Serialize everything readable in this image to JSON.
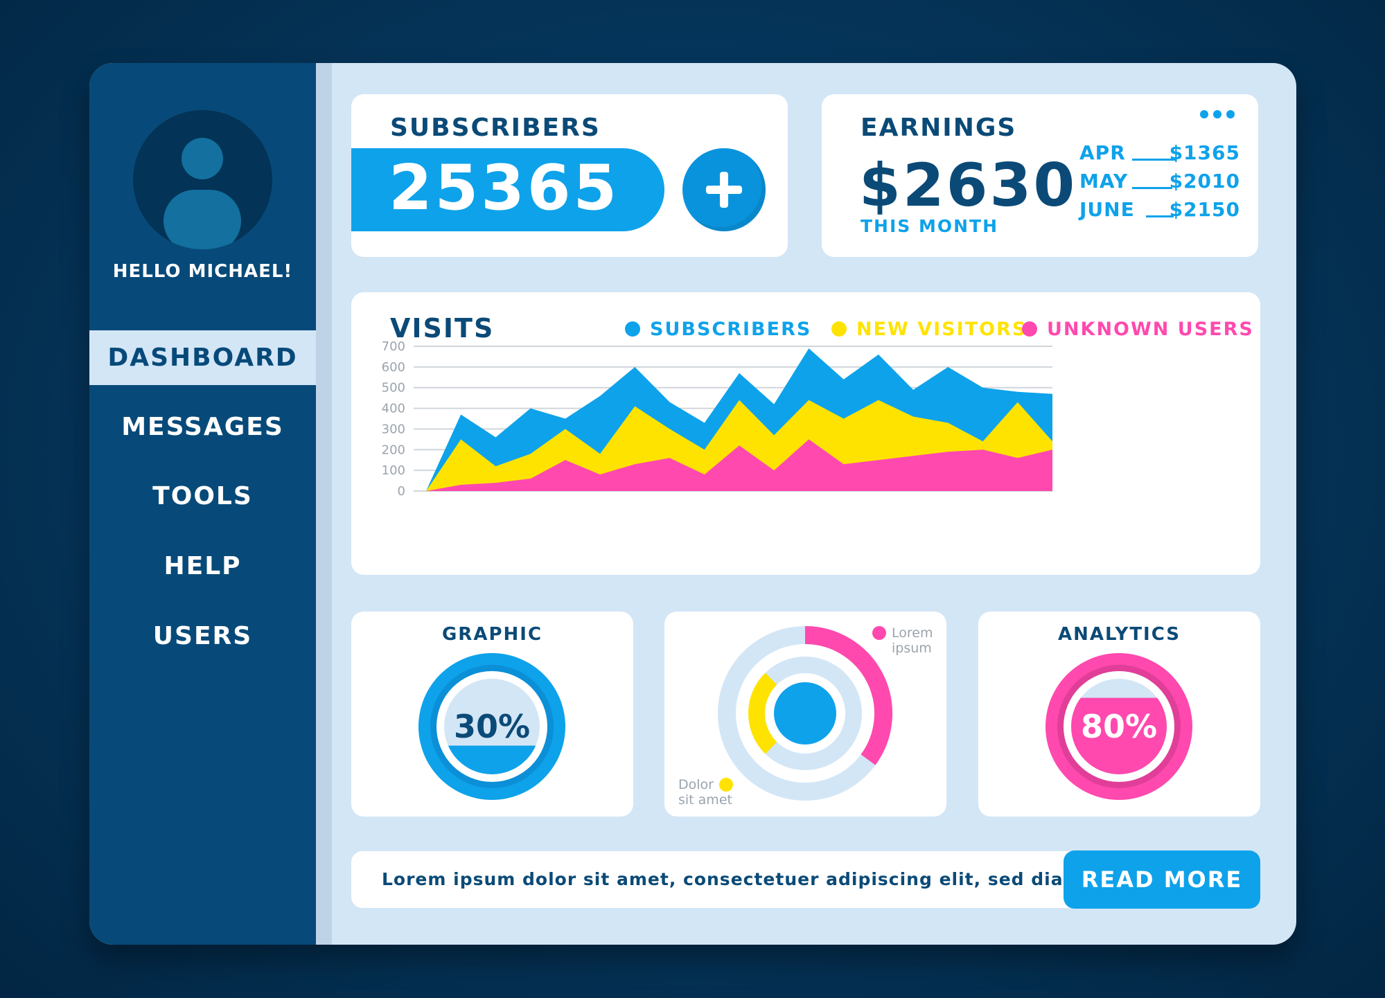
{
  "sidebar": {
    "greeting": "HELLO MICHAEL!",
    "nav": [
      "DASHBOARD",
      "MESSAGES",
      "TOOLS",
      "HELP",
      "USERS"
    ],
    "active": "DASHBOARD"
  },
  "subscribers": {
    "title": "SUBSCRIBERS",
    "value": "25365",
    "add_icon": "plus-icon"
  },
  "earnings": {
    "title": "EARNINGS",
    "value": "$2630",
    "caption": "THIS MONTH",
    "months": [
      {
        "month": "APR",
        "amount": "$1365"
      },
      {
        "month": "MAY",
        "amount": "$2010"
      },
      {
        "month": "JUNE",
        "amount": "$2150"
      }
    ],
    "menu_icon": "more-dots-icon"
  },
  "visits": {
    "title": "VISITS",
    "legend": [
      {
        "label": "SUBSCRIBERS",
        "color": "#0ea2ea"
      },
      {
        "label": "NEW VISITORS",
        "color": "#ffe300"
      },
      {
        "label": "UNKNOWN USERS",
        "color": "#ff49ae"
      }
    ]
  },
  "chart_data": {
    "type": "area",
    "title": "VISITS",
    "xlabel": "",
    "ylabel": "",
    "ylim": [
      0,
      700
    ],
    "yticks": [
      0,
      100,
      200,
      300,
      400,
      500,
      600,
      700
    ],
    "grid": true,
    "legend_position": "top-right",
    "x": [
      0,
      1,
      2,
      3,
      4,
      5,
      6,
      7,
      8,
      9,
      10,
      11,
      12,
      13,
      14,
      15,
      16,
      17,
      18
    ],
    "series": [
      {
        "name": "SUBSCRIBERS",
        "color": "#0ea2ea",
        "values": [
          0,
          370,
          260,
          400,
          350,
          460,
          600,
          430,
          330,
          570,
          420,
          690,
          540,
          660,
          490,
          600,
          500,
          480,
          470
        ]
      },
      {
        "name": "NEW VISITORS",
        "color": "#ffe300",
        "values": [
          0,
          250,
          120,
          180,
          300,
          180,
          410,
          300,
          200,
          440,
          270,
          440,
          350,
          440,
          360,
          330,
          240,
          430,
          240
        ]
      },
      {
        "name": "UNKNOWN USERS",
        "color": "#ff49ae",
        "values": [
          0,
          30,
          40,
          60,
          150,
          80,
          130,
          160,
          80,
          220,
          100,
          250,
          130,
          150,
          170,
          190,
          200,
          160,
          200
        ]
      }
    ]
  },
  "graphic": {
    "title": "GRAPHIC",
    "percent": "30%",
    "fill": 0.3
  },
  "donut": {
    "labels": [
      {
        "text": [
          "Lorem",
          "ipsum"
        ],
        "color": "#ff49ae"
      },
      {
        "text": [
          "Dolor",
          "sit amet"
        ],
        "color": "#ffe300"
      }
    ]
  },
  "analytics": {
    "title": "ANALYTICS",
    "percent": "80%",
    "fill": 0.8
  },
  "footer": {
    "text": "Lorem ipsum dolor sit amet, consectetuer adipiscing elit, sed diam...",
    "button": "READ MORE"
  }
}
